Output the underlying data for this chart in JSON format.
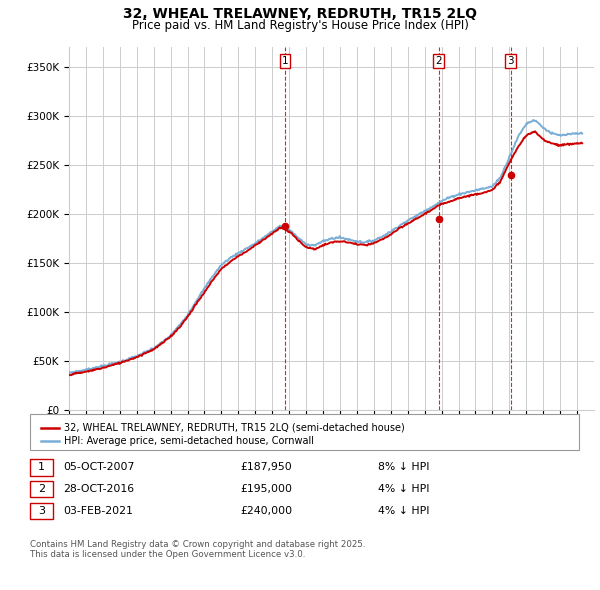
{
  "title1": "32, WHEAL TRELAWNEY, REDRUTH, TR15 2LQ",
  "title2": "Price paid vs. HM Land Registry's House Price Index (HPI)",
  "yticks": [
    0,
    50000,
    100000,
    150000,
    200000,
    250000,
    300000,
    350000
  ],
  "ytick_labels": [
    "£0",
    "£50K",
    "£100K",
    "£150K",
    "£200K",
    "£250K",
    "£300K",
    "£350K"
  ],
  "hpi_color": "#7aaed6",
  "price_color": "#cc0000",
  "vline_color": "#cc0000",
  "grid_color": "#cccccc",
  "bg_color": "#ffffff",
  "sale1": {
    "date": "05-OCT-2007",
    "price": 187950,
    "pct": "8%",
    "dir": "↓",
    "x": 2007.76
  },
  "sale2": {
    "date": "28-OCT-2016",
    "price": 195000,
    "pct": "4%",
    "dir": "↓",
    "x": 2016.83
  },
  "sale3": {
    "date": "03-FEB-2021",
    "price": 240000,
    "pct": "4%",
    "dir": "↓",
    "x": 2021.09
  },
  "legend_line1": "32, WHEAL TRELAWNEY, REDRUTH, TR15 2LQ (semi-detached house)",
  "legend_line2": "HPI: Average price, semi-detached house, Cornwall",
  "footnote": "Contains HM Land Registry data © Crown copyright and database right 2025.\nThis data is licensed under the Open Government Licence v3.0.",
  "xmin": 1995,
  "xmax": 2026,
  "ylim": [
    0,
    370000
  ]
}
